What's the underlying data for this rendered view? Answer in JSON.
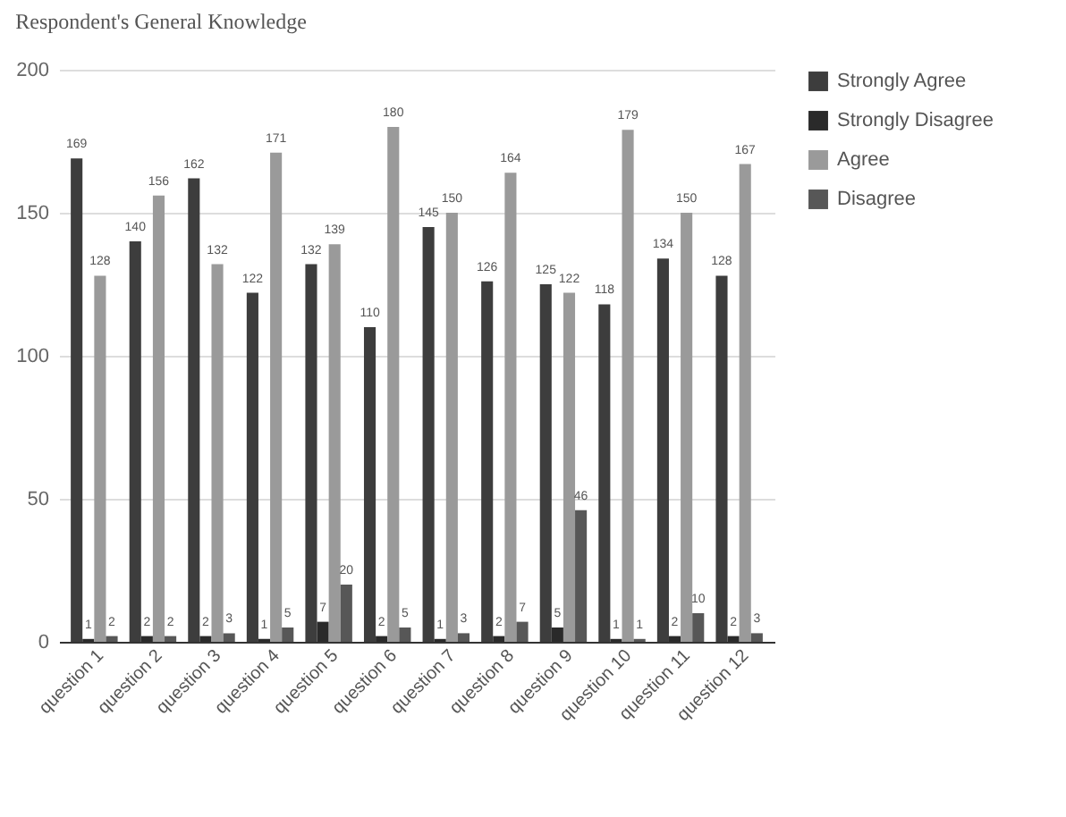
{
  "chart_data": {
    "type": "bar",
    "title": "Respondent's General Knowledge",
    "categories": [
      "question 1",
      "question 2",
      "question 3",
      "question 4",
      "question 5",
      "question 6",
      "question 7",
      "question 8",
      "question 9",
      "question 10",
      "question 11",
      "question 12"
    ],
    "series": [
      {
        "name": "Strongly Agree",
        "color": "#3d3d3d",
        "values": [
          169,
          140,
          162,
          122,
          132,
          110,
          145,
          126,
          125,
          118,
          134,
          128
        ]
      },
      {
        "name": "Strongly Disagree",
        "color": "#2a2a2a",
        "values": [
          1,
          2,
          2,
          1,
          7,
          2,
          1,
          2,
          5,
          1,
          2,
          2
        ]
      },
      {
        "name": "Agree",
        "color": "#9a9a9a",
        "values": [
          128,
          156,
          132,
          171,
          139,
          180,
          150,
          164,
          122,
          179,
          150,
          167
        ]
      },
      {
        "name": "Disagree",
        "color": "#575757",
        "values": [
          2,
          2,
          3,
          5,
          20,
          5,
          3,
          7,
          46,
          1,
          10,
          3
        ]
      }
    ],
    "ylim": [
      0,
      200
    ],
    "yticks": [
      0,
      50,
      100,
      150,
      200
    ],
    "grid": "y",
    "legend": "top right",
    "data_labels": true
  }
}
